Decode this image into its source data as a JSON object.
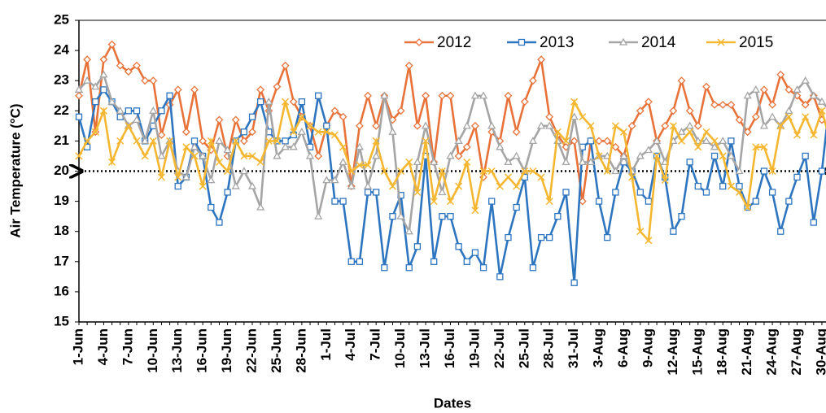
{
  "chart_data": {
    "type": "line",
    "ylabel": "Air Temperature (°C)",
    "xlabel": "Dates",
    "categories": [
      "1-Jun",
      null,
      null,
      "4-Jun",
      null,
      null,
      "7-Jun",
      null,
      null,
      "10-Jun",
      null,
      null,
      "13-Jun",
      null,
      null,
      "16-Jun",
      null,
      null,
      "19-Jun",
      null,
      null,
      "22-Jun",
      null,
      null,
      "25-Jun",
      null,
      null,
      "28-Jun",
      null,
      null,
      "1-Jul",
      null,
      null,
      "4-Jul",
      null,
      null,
      "7-Jul",
      null,
      null,
      "10-Jul",
      null,
      null,
      "13-Jul",
      null,
      null,
      "16-Jul",
      null,
      null,
      "19-Jul",
      null,
      null,
      "22-Jul",
      null,
      null,
      "25-Jul",
      null,
      null,
      "28-Jul",
      null,
      null,
      "31-Jul",
      null,
      null,
      "3-Aug",
      null,
      null,
      "6-Aug",
      null,
      null,
      "9-Aug",
      null,
      null,
      "12-Aug",
      null,
      null,
      "15-Aug",
      null,
      null,
      "18-Aug",
      null,
      null,
      "21-Aug",
      null,
      null,
      "24-Aug",
      null,
      null,
      "27-Aug",
      null,
      null,
      "30-Aug",
      null
    ],
    "series": [
      {
        "name": "2012",
        "color": "#e8733a",
        "marker": "diamond",
        "values": [
          22.5,
          23.7,
          21.3,
          23.7,
          24.2,
          23.5,
          23.3,
          23.5,
          23.0,
          23.0,
          21.2,
          22.2,
          22.7,
          21.3,
          22.7,
          21.0,
          20.7,
          21.7,
          20.5,
          21.7,
          21.0,
          21.3,
          22.7,
          22.0,
          22.8,
          23.5,
          22.3,
          21.8,
          21.5,
          20.5,
          21.5,
          22.0,
          21.8,
          19.5,
          21.5,
          22.5,
          21.5,
          22.5,
          21.7,
          22.0,
          23.5,
          21.5,
          22.5,
          20.3,
          22.5,
          22.5,
          20.5,
          20.8,
          21.5,
          19.8,
          21.3,
          21.0,
          22.5,
          21.3,
          22.3,
          23.0,
          23.7,
          21.8,
          21.2,
          20.8,
          21.0,
          19.0,
          21.0,
          21.0,
          21.0,
          20.8,
          20.5,
          21.5,
          22.0,
          22.3,
          21.0,
          21.5,
          22.0,
          23.0,
          22.0,
          21.5,
          22.8,
          22.2,
          22.2,
          22.2,
          21.7,
          21.3,
          21.8,
          22.7,
          22.2,
          23.2,
          22.7,
          22.5,
          22.2,
          22.5,
          21.7,
          21.5
        ]
      },
      {
        "name": "2013",
        "color": "#2e75c0",
        "marker": "square",
        "values": [
          21.8,
          20.8,
          22.3,
          22.7,
          22.3,
          21.8,
          22.0,
          22.0,
          21.0,
          21.5,
          22.0,
          22.5,
          19.5,
          19.8,
          21.0,
          20.5,
          18.8,
          18.3,
          19.3,
          21.0,
          21.3,
          21.8,
          22.3,
          21.3,
          21.0,
          21.0,
          21.2,
          22.3,
          20.8,
          22.5,
          21.5,
          19.0,
          19.0,
          17.0,
          17.0,
          19.3,
          19.3,
          16.8,
          18.5,
          19.2,
          16.8,
          17.5,
          20.5,
          17.0,
          18.5,
          18.5,
          17.5,
          17.0,
          17.3,
          16.8,
          19.0,
          16.5,
          17.8,
          18.8,
          19.8,
          16.8,
          17.8,
          17.8,
          18.5,
          19.3,
          16.3,
          20.8,
          21.0,
          19.0,
          17.8,
          19.3,
          20.3,
          20.0,
          19.3,
          19.0,
          20.5,
          19.8,
          18.0,
          18.5,
          20.3,
          19.5,
          19.3,
          20.5,
          19.5,
          21.0,
          19.5,
          18.8,
          19.0,
          20.0,
          19.3,
          18.0,
          19.0,
          19.8,
          20.5,
          18.3,
          20.0,
          22.5
        ]
      },
      {
        "name": "2014",
        "color": "#a5a5a5",
        "marker": "triangle",
        "values": [
          22.7,
          23.0,
          22.8,
          23.2,
          22.3,
          22.0,
          21.5,
          21.7,
          21.0,
          22.0,
          20.5,
          21.0,
          20.0,
          19.8,
          20.8,
          20.5,
          19.7,
          21.0,
          20.7,
          19.5,
          20.0,
          19.5,
          18.8,
          22.3,
          20.5,
          20.8,
          20.8,
          21.3,
          20.5,
          18.5,
          19.7,
          19.7,
          20.3,
          19.5,
          20.8,
          19.5,
          20.5,
          22.5,
          21.3,
          18.5,
          18.0,
          20.3,
          21.5,
          20.3,
          19.3,
          20.5,
          21.0,
          21.5,
          22.5,
          22.5,
          21.5,
          20.8,
          20.3,
          20.5,
          20.0,
          21.0,
          21.5,
          21.5,
          21.0,
          20.3,
          21.8,
          20.3,
          20.3,
          20.5,
          20.5,
          20.0,
          20.5,
          20.0,
          20.5,
          20.7,
          21.0,
          20.3,
          21.0,
          21.3,
          21.5,
          21.0,
          21.0,
          20.8,
          21.0,
          20.5,
          20.0,
          22.5,
          22.7,
          21.5,
          21.8,
          21.5,
          22.0,
          22.7,
          23.0,
          22.5,
          22.3,
          22.0
        ]
      },
      {
        "name": "2015",
        "color": "#f5b731",
        "marker": "x",
        "values": [
          20.5,
          21.0,
          21.3,
          22.0,
          20.3,
          21.0,
          21.5,
          21.0,
          20.5,
          21.0,
          19.8,
          21.0,
          19.8,
          20.8,
          20.5,
          19.5,
          21.0,
          20.3,
          20.0,
          21.0,
          20.5,
          20.5,
          20.3,
          21.0,
          21.0,
          22.3,
          21.3,
          21.8,
          21.5,
          21.3,
          21.3,
          21.2,
          20.8,
          20.0,
          20.2,
          20.2,
          21.0,
          20.0,
          19.5,
          20.0,
          20.3,
          19.3,
          21.0,
          19.0,
          20.0,
          19.0,
          19.5,
          20.3,
          18.7,
          20.0,
          20.0,
          19.5,
          19.8,
          19.5,
          20.0,
          20.0,
          19.8,
          19.0,
          21.3,
          21.0,
          22.3,
          21.8,
          21.5,
          20.5,
          20.0,
          21.5,
          21.3,
          19.8,
          18.0,
          17.7,
          20.5,
          19.7,
          21.5,
          21.0,
          21.3,
          20.8,
          21.3,
          21.0,
          20.5,
          19.5,
          19.3,
          18.8,
          20.8,
          20.8,
          20.0,
          21.5,
          21.8,
          21.2,
          21.8,
          21.2,
          22.0,
          21.0
        ]
      }
    ],
    "reference_line": 20,
    "ylim": [
      15,
      25
    ],
    "yticks": [
      15,
      16,
      17,
      18,
      19,
      20,
      21,
      22,
      23,
      24,
      25
    ]
  }
}
